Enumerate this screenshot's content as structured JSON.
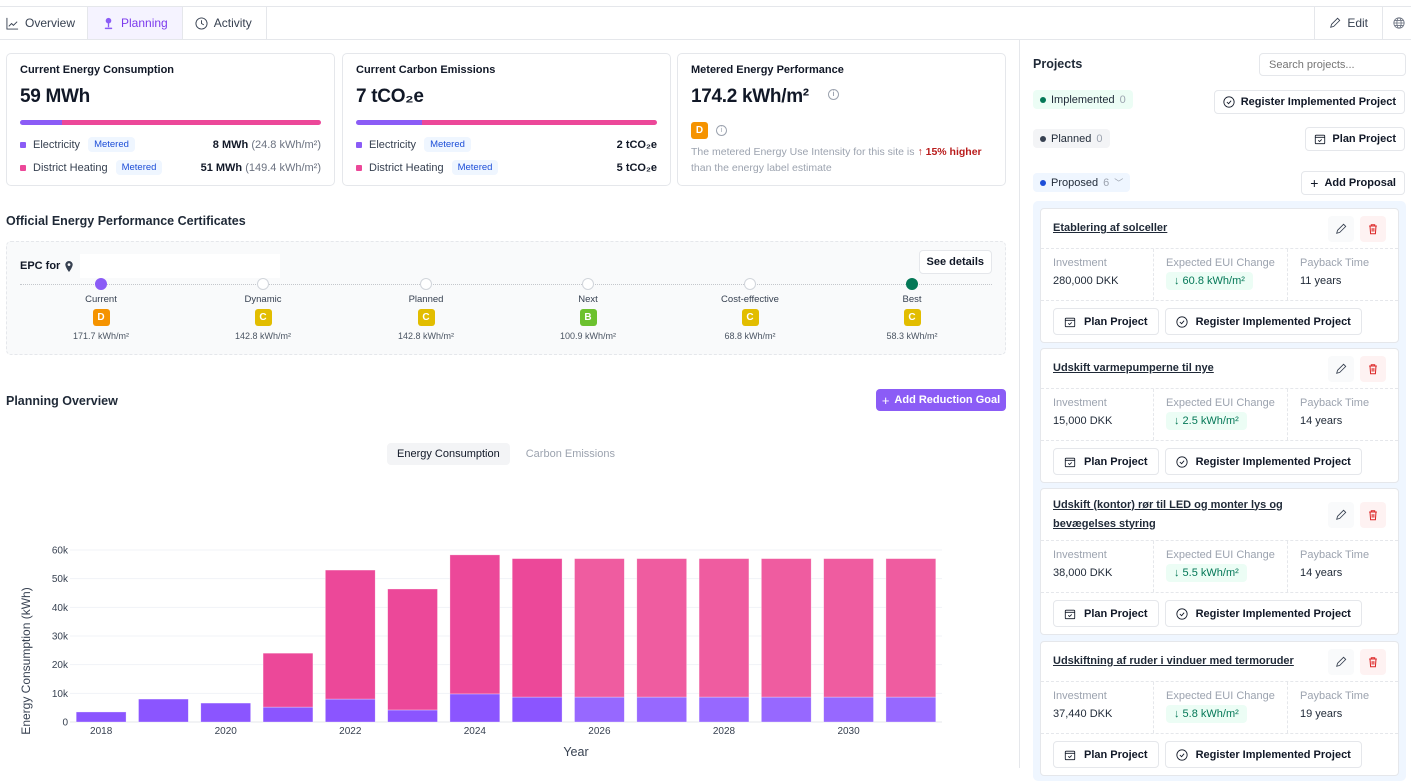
{
  "tabs": [
    {
      "label": "Overview",
      "icon": "chart-line-icon",
      "active": false
    },
    {
      "label": "Planning",
      "icon": "pin-icon",
      "active": true
    },
    {
      "label": "Activity",
      "icon": "clock-icon",
      "active": false
    }
  ],
  "topbar": {
    "edit_label": "Edit",
    "globe_icon": "globe-icon"
  },
  "cards": {
    "energy": {
      "title": "Current Energy Consumption",
      "value": "59 MWh",
      "electricity_share": 0.14,
      "rows": [
        {
          "label": "Electricity",
          "badge": "Metered",
          "value": "8 MWh",
          "detail": "(24.8 kWh/m²)",
          "color": "#8b5cf6"
        },
        {
          "label": "District Heating",
          "badge": "Metered",
          "value": "51 MWh",
          "detail": "(149.4 kWh/m²)",
          "color": "#ec4899"
        }
      ]
    },
    "carbon": {
      "title": "Current Carbon Emissions",
      "value": "7 tCO₂e",
      "electricity_share": 0.22,
      "rows": [
        {
          "label": "Electricity",
          "badge": "Metered",
          "value": "2 tCO₂e",
          "color": "#8b5cf6"
        },
        {
          "label": "District Heating",
          "badge": "Metered",
          "value": "5 tCO₂e",
          "color": "#ec4899"
        }
      ]
    },
    "performance": {
      "title": "Metered Energy Performance",
      "value": "174.2 kWh/m²",
      "label": "D",
      "note_pre": "The metered Energy Use Intensity for this site is",
      "note_arrow": "↑",
      "note_pct": "15%",
      "note_higher": "higher",
      "note_post": "than the energy label estimate"
    }
  },
  "epc": {
    "section_title": "Official Energy Performance Certificates",
    "epc_for": "EPC for",
    "see_details": "See details",
    "steps": [
      {
        "name": "Current",
        "label": "D",
        "color": "#f59300",
        "value": "171.7 kWh/m²",
        "state": "current"
      },
      {
        "name": "Dynamic",
        "label": "C",
        "color": "#e2bd00",
        "value": "142.8 kWh/m²",
        "state": "empty"
      },
      {
        "name": "Planned",
        "label": "C",
        "color": "#e2bd00",
        "value": "142.8 kWh/m²",
        "state": "empty"
      },
      {
        "name": "Next",
        "label": "B",
        "color": "#6cc12e",
        "value": "100.9 kWh/m²",
        "state": "empty"
      },
      {
        "name": "Cost-effective",
        "label": "C",
        "color": "#e2bd00",
        "value": "68.8 kWh/m²",
        "state": "empty"
      },
      {
        "name": "Best",
        "label": "C",
        "color": "#e2bd00",
        "value": "58.3 kWh/m²",
        "state": "best"
      }
    ]
  },
  "planning": {
    "title": "Planning Overview",
    "add_goal": "Add Reduction Goal",
    "toggle": [
      "Energy Consumption",
      "Carbon Emissions"
    ],
    "toggle_active": 0
  },
  "chart_data": {
    "type": "bar",
    "stacked": true,
    "title": "",
    "xlabel": "Year",
    "ylabel": "Energy Consumption (kWh)",
    "ylim": [
      0,
      60000
    ],
    "yticks": [
      "0",
      "10k",
      "20k",
      "30k",
      "40k",
      "50k",
      "60k"
    ],
    "ytick_values": [
      0,
      10000,
      20000,
      30000,
      40000,
      50000,
      60000
    ],
    "xtick_labels": [
      "2018",
      "2020",
      "2022",
      "2024",
      "2026",
      "2028",
      "2030"
    ],
    "categories": [
      "2018",
      "2019",
      "2020",
      "2021",
      "2022",
      "2023",
      "2024",
      "2025",
      "2026",
      "2027",
      "2028",
      "2029",
      "2030",
      "2031"
    ],
    "grid": true,
    "series": [
      {
        "name": "Electricity",
        "color": "#8b55ff",
        "projected_color": "#9768ff",
        "values": [
          3500,
          8000,
          6600,
          5200,
          8000,
          4200,
          9800,
          8700,
          8700,
          8700,
          8700,
          8700,
          8700,
          8700
        ]
      },
      {
        "name": "District Heating",
        "color": "#ec4899",
        "projected_color": "#ef5ca0",
        "values": [
          0,
          0,
          0,
          18800,
          45000,
          42200,
          48500,
          48300,
          48300,
          48300,
          48300,
          48300,
          48300,
          48300
        ]
      }
    ],
    "projected_from": "2026"
  },
  "projects": {
    "title": "Projects",
    "search_placeholder": "Search projects...",
    "implemented": {
      "label": "Implemented",
      "count": "0",
      "action": "Register Implemented Project"
    },
    "planned": {
      "label": "Planned",
      "count": "0",
      "action": "Plan Project"
    },
    "proposed": {
      "label": "Proposed",
      "count": "6",
      "action": "Add Proposal"
    },
    "labels": {
      "investment": "Investment",
      "eui": "Expected EUI Change",
      "payback": "Payback Time",
      "plan": "Plan Project",
      "register": "Register Implemented Project"
    },
    "items": [
      {
        "title": "Etablering af solceller",
        "investment": "280,000 DKK",
        "eui": "↓ 60.8 kWh/m²",
        "payback": "11 years"
      },
      {
        "title": "Udskift varmepumperne til nye",
        "investment": "15,000 DKK",
        "eui": "↓ 2.5 kWh/m²",
        "payback": "14 years"
      },
      {
        "title": "Udskift (kontor) rør til LED og monter lys og bevægelses styring",
        "investment": "38,000 DKK",
        "eui": "↓ 5.5 kWh/m²",
        "payback": "14 years"
      },
      {
        "title": "Udskiftning af ruder i vinduer med termoruder",
        "investment": "37,440 DKK",
        "eui": "↓ 5.8 kWh/m²",
        "payback": "19 years"
      }
    ]
  }
}
